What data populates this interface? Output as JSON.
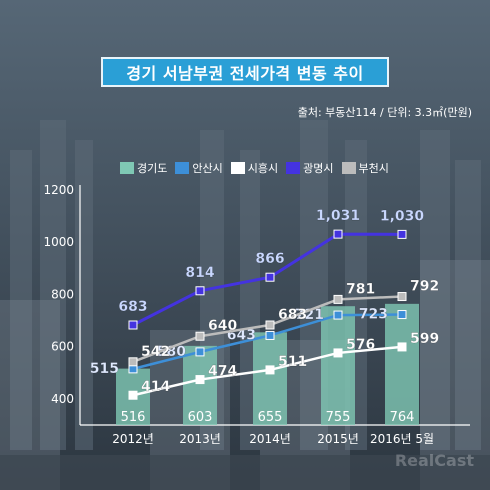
{
  "title": "경기 서남부권 전세가격 변동 추이",
  "source": "출처: 부동산114 / 단위: 3.3㎡(만원)",
  "watermark": "RealCast",
  "colors": {
    "경기도": "#7fc8b4",
    "안산시": "#3d8fd8",
    "시흥시": "#ffffff",
    "광명시": "#4433e0",
    "부천시": "#bcbcbc"
  },
  "chart_data": {
    "type": "bar+line",
    "categories": [
      "2012년",
      "2013년",
      "2014년",
      "2015년",
      "2016년 5월"
    ],
    "ylim": [
      300,
      1200
    ],
    "yticks": [
      400,
      600,
      800,
      1000,
      1200
    ],
    "grid": false,
    "legend_position": "top",
    "bars": {
      "name": "경기도",
      "values": [
        516,
        603,
        655,
        755,
        764
      ]
    },
    "series": [
      {
        "name": "안산시",
        "values": [
          515,
          580,
          643,
          721,
          723
        ]
      },
      {
        "name": "시흥시",
        "values": [
          414,
          474,
          511,
          576,
          599
        ]
      },
      {
        "name": "광명시",
        "values": [
          683,
          814,
          866,
          1031,
          1030
        ]
      },
      {
        "name": "부천시",
        "values": [
          542,
          640,
          683,
          781,
          792
        ]
      }
    ],
    "value_labels": {
      "경기도": [
        "516",
        "603",
        "655",
        "755",
        "764"
      ],
      "안산시": [
        "515",
        "580",
        "643",
        "721",
        "723"
      ],
      "시흥시": [
        "414",
        "474",
        "511",
        "576",
        "599"
      ],
      "광명시": [
        "683",
        "814",
        "866",
        "1,031",
        "1,030"
      ],
      "부천시": [
        "542",
        "640",
        "683",
        "781",
        "792"
      ]
    }
  }
}
